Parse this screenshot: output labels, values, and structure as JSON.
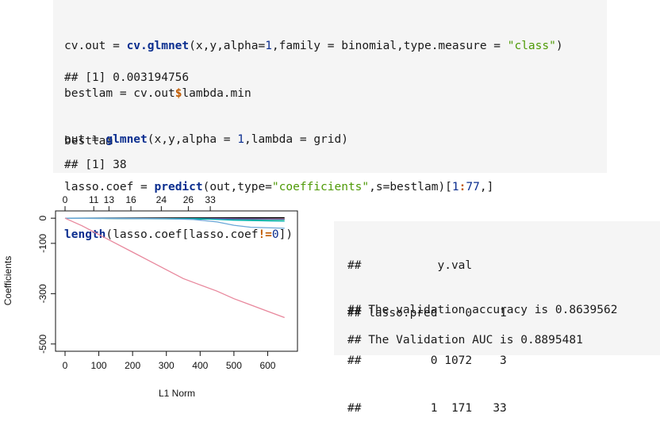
{
  "code_block": {
    "line1": {
      "p1": "cv.out = ",
      "p2": "cv.glmnet",
      "p3": "(x,y,alpha=",
      "p4": "1",
      "p5": ",family = binomial,type.measure = ",
      "p6": "\"class\"",
      "p7": ")"
    },
    "line2": {
      "p1": "bestlam = cv.out",
      "p2": "$",
      "p3": "lambda.min"
    },
    "line3": "bestlam",
    "output1": "## [1] 0.003194756",
    "line4": {
      "p1": "out = ",
      "p2": "glmnet",
      "p3": "(x,y,alpha = ",
      "p4": "1",
      "p5": ",lambda = grid)"
    },
    "line5": {
      "p1": "lasso.coef = ",
      "p2": "predict",
      "p3": "(out,type=",
      "p4": "\"coefficients\"",
      "p5": ",s=bestlam)[",
      "p6": "1",
      "p7": ":",
      "p8": "77",
      "p9": ",]"
    },
    "line6": {
      "p1": "length",
      "p2": "(lasso.coef[lasso.coef",
      "p3": "!=",
      "p4": "0",
      "p5": "])"
    },
    "output2": "## [1] 38"
  },
  "chart_data": {
    "type": "line",
    "title": "",
    "xlabel": "L1 Norm",
    "ylabel": "Coefficients",
    "xlim": [
      0,
      660
    ],
    "ylim": [
      -510,
      10
    ],
    "x_ticks": [
      "0",
      "100",
      "200",
      "300",
      "400",
      "500",
      "600"
    ],
    "y_ticks": [
      "0",
      "-100",
      "-300",
      "-500"
    ],
    "top_axis_ticks": [
      "0",
      "11",
      "13",
      "16",
      "24",
      "26",
      "33"
    ],
    "colors": {
      "main": "#e8879c",
      "blue": "#6aa7d8"
    },
    "series": [
      {
        "color": "#e8879c",
        "points": [
          [
            0,
            0
          ],
          [
            50,
            -30
          ],
          [
            100,
            -65
          ],
          [
            150,
            -100
          ],
          [
            200,
            -135
          ],
          [
            250,
            -170
          ],
          [
            300,
            -205
          ],
          [
            350,
            -240
          ],
          [
            400,
            -265
          ],
          [
            450,
            -290
          ],
          [
            500,
            -320
          ],
          [
            550,
            -345
          ],
          [
            600,
            -370
          ],
          [
            650,
            -395
          ]
        ]
      },
      {
        "color": "#6aa7d8",
        "points": [
          [
            0,
            0
          ],
          [
            300,
            -2
          ],
          [
            380,
            -5
          ],
          [
            450,
            -15
          ],
          [
            500,
            -28
          ],
          [
            550,
            -36
          ],
          [
            650,
            -40
          ]
        ]
      },
      {
        "color": "#00b0b0",
        "points": [
          [
            0,
            0
          ],
          [
            400,
            -2
          ],
          [
            500,
            -8
          ],
          [
            650,
            -12
          ]
        ]
      },
      {
        "color": "#7a5fc0",
        "points": [
          [
            0,
            0
          ],
          [
            450,
            -2
          ],
          [
            650,
            -4
          ]
        ]
      },
      {
        "color": "#000000",
        "points": [
          [
            0,
            0
          ],
          [
            650,
            2
          ]
        ]
      },
      {
        "color": "#d55e00",
        "points": [
          [
            0,
            0
          ],
          [
            650,
            -3
          ]
        ]
      },
      {
        "color": "#009e73",
        "points": [
          [
            0,
            0
          ],
          [
            650,
            -6
          ]
        ]
      },
      {
        "color": "#666666",
        "points": [
          [
            0,
            0
          ],
          [
            650,
            -2
          ]
        ]
      }
    ]
  },
  "result_block": {
    "lines": [
      "##           y.val",
      "## lasso.pred    0    1",
      "##          0 1072    3",
      "##          1  171   33"
    ],
    "accuracy": "## The validation accuracy is 0.8639562",
    "auc": "## The Validation AUC is 0.8895481"
  }
}
